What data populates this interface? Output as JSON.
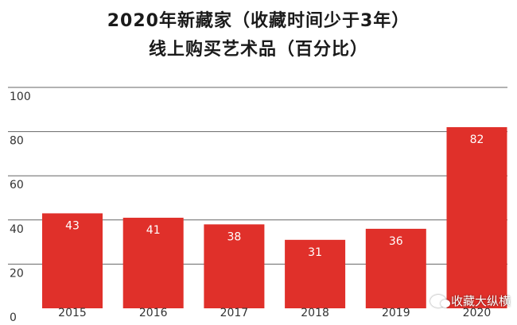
{
  "chart_data": {
    "type": "bar",
    "title": "2020年新藏家（收藏时间少于3年）",
    "subtitle": "线上购买艺术品（百分比）",
    "categories": [
      "2015",
      "2016",
      "2017",
      "2018",
      "2019",
      "2020"
    ],
    "values": [
      43,
      41,
      38,
      31,
      36,
      82
    ],
    "data_labels": [
      "43",
      "41",
      "38",
      "31",
      "36",
      "82"
    ],
    "y_ticks": [
      "0",
      "20",
      "40",
      "60",
      "80",
      "100"
    ],
    "ylim": [
      0,
      100
    ],
    "grid": true,
    "bar_color": "#e0302a",
    "label_color": "#ffffff"
  },
  "watermark": "收藏大纵横"
}
